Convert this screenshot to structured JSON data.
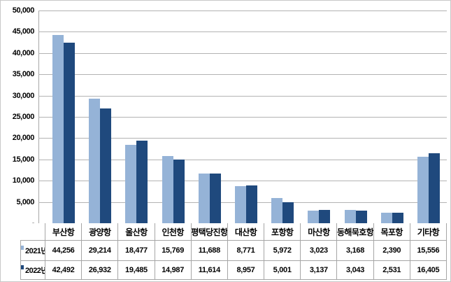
{
  "chart_data": {
    "type": "bar",
    "title": "",
    "xlabel": "",
    "ylabel": "",
    "categories": [
      "부산항",
      "광양항",
      "울산항",
      "인천항",
      "평택당진항",
      "대산항",
      "포항항",
      "마산항",
      "동해묵호항",
      "목포항",
      "기타항"
    ],
    "series": [
      {
        "name": "2021년",
        "color": "#95B3D7",
        "values": [
          44256,
          29214,
          18477,
          15769,
          11688,
          8771,
          5972,
          3023,
          3168,
          2390,
          15556
        ]
      },
      {
        "name": "2022년",
        "color": "#1F497D",
        "values": [
          42492,
          26932,
          19485,
          14987,
          11614,
          8957,
          5001,
          3137,
          3043,
          2531,
          16405
        ]
      }
    ],
    "ylim": [
      0,
      50000
    ],
    "y_tick_step": 5000,
    "y_tick_labels_bottom_to_top": [
      "-",
      "5,000",
      "10,000",
      "15,000",
      "20,000",
      "25,000",
      "30,000",
      "35,000",
      "40,000",
      "45,000",
      "50,000"
    ],
    "grid": true,
    "legend_position": "table-left-column"
  },
  "table": {
    "column_headers": [
      "부산항",
      "광양항",
      "울산항",
      "인천항",
      "평택당진항",
      "대산항",
      "포항항",
      "마산항",
      "동해묵호항",
      "목포항",
      "기타항"
    ],
    "rows": [
      {
        "label": "2021년",
        "key_color": "#95B3D7",
        "values": [
          "44,256",
          "29,214",
          "18,477",
          "15,769",
          "11,688",
          "8,771",
          "5,972",
          "3,023",
          "3,168",
          "2,390",
          "15,556"
        ]
      },
      {
        "label": "2022년",
        "key_color": "#1F497D",
        "values": [
          "42,492",
          "26,932",
          "19,485",
          "14,987",
          "11,614",
          "8,957",
          "5,001",
          "3,137",
          "3,043",
          "2,531",
          "16,405"
        ]
      }
    ]
  },
  "colors": {
    "series_2021": "#95B3D7",
    "series_2022": "#1F497D",
    "gridline": "#B3B3B3",
    "axis_line": "#A6A6A6",
    "table_border": "#A6A6A6",
    "background": "#FFFFFF",
    "outer_border": "#C8C8C8"
  }
}
